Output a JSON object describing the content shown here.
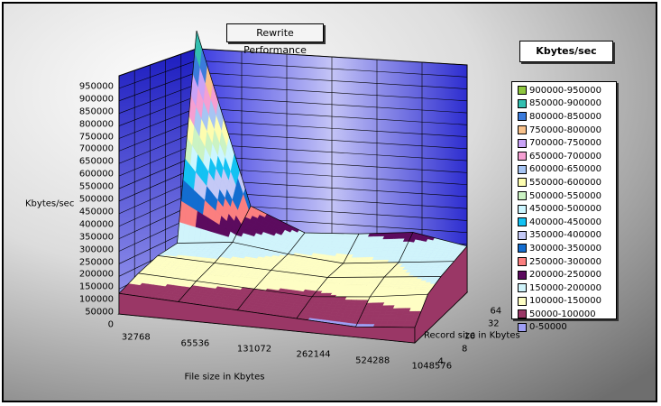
{
  "chart_data": {
    "type": "surface",
    "title": "Rewrite Performance",
    "ylabel": "Kbytes/sec",
    "xlabel": "File size in Kbytes",
    "zlabel": "Record size in Kbytes",
    "legend_title": "Kbytes/sec",
    "zlim": [
      0,
      950000
    ],
    "z_ticks": [
      "0",
      "50000",
      "100000",
      "150000",
      "200000",
      "250000",
      "300000",
      "350000",
      "400000",
      "450000",
      "500000",
      "550000",
      "600000",
      "650000",
      "700000",
      "750000",
      "800000",
      "850000",
      "900000",
      "950000"
    ],
    "x_categories": [
      "32768",
      "65536",
      "131072",
      "262144",
      "524288",
      "1048576"
    ],
    "y_categories": [
      "4",
      "8",
      "16",
      "32",
      "64"
    ],
    "values": [
      [
        80000,
        70000,
        60000,
        50000,
        40000,
        60000
      ],
      [
        120000,
        110000,
        100000,
        90000,
        110000,
        140000
      ],
      [
        150000,
        140000,
        130000,
        120000,
        140000,
        160000
      ],
      [
        160000,
        180000,
        150000,
        130000,
        150000,
        170000
      ],
      [
        950000,
        280000,
        190000,
        200000,
        220000,
        180000
      ]
    ],
    "legend": [
      {
        "label": "900000-950000",
        "color": "#8ec63f"
      },
      {
        "label": "850000-900000",
        "color": "#33bfb0"
      },
      {
        "label": "800000-850000",
        "color": "#3b7bdc"
      },
      {
        "label": "750000-800000",
        "color": "#f9c28b"
      },
      {
        "label": "700000-750000",
        "color": "#c9a3f6"
      },
      {
        "label": "650000-700000",
        "color": "#f59fd2"
      },
      {
        "label": "600000-650000",
        "color": "#a7c5f3"
      },
      {
        "label": "550000-600000",
        "color": "#fdfdaf"
      },
      {
        "label": "500000-550000",
        "color": "#cbf3c3"
      },
      {
        "label": "450000-500000",
        "color": "#ccf6ff"
      },
      {
        "label": "400000-450000",
        "color": "#13c2f3"
      },
      {
        "label": "350000-400000",
        "color": "#c4c9f6"
      },
      {
        "label": "300000-350000",
        "color": "#136dd0"
      },
      {
        "label": "250000-300000",
        "color": "#fb7f7f"
      },
      {
        "label": "200000-250000",
        "color": "#5c0b5e"
      },
      {
        "label": "150000-200000",
        "color": "#d0f4fb"
      },
      {
        "label": "100000-150000",
        "color": "#fefec4"
      },
      {
        "label": "50000-100000",
        "color": "#9a3766"
      },
      {
        "label": "0-50000",
        "color": "#9e9ef4"
      }
    ]
  }
}
